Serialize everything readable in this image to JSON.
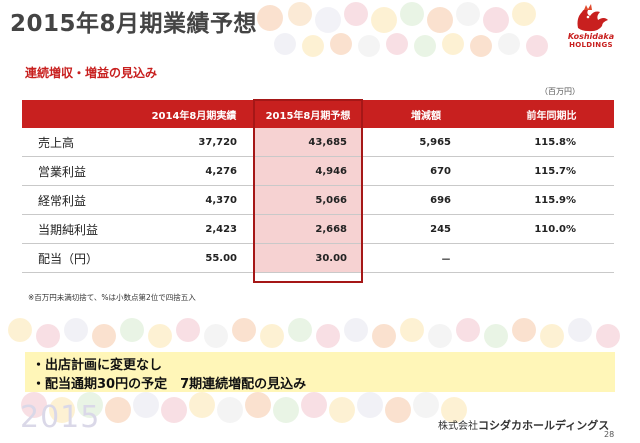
{
  "page": {
    "title": "2015年8月期業績予想",
    "subtitle": "連続増収・増益の見込み",
    "unit": "（百万円）",
    "note": "※百万円未満切捨て、%は小数点第2位で四捨五入",
    "watermark_year": "2015",
    "company_prefix": "株式会社",
    "company_name": "コシダカホールディングス",
    "page_number": "28"
  },
  "logo": {
    "brand": "Koshidaka",
    "sub": "HOLDINGS",
    "color": "#c8201f"
  },
  "table": {
    "headers": [
      "",
      "2014年8月期実績",
      "2015年8月期予想",
      "増減額",
      "前年同期比"
    ],
    "rows": [
      {
        "label": "売上高",
        "actual": "37,720",
        "forecast": "43,685",
        "change": "5,965",
        "yoy": "115.8%"
      },
      {
        "label": "営業利益",
        "actual": "4,276",
        "forecast": "4,946",
        "change": "670",
        "yoy": "115.7%"
      },
      {
        "label": "経常利益",
        "actual": "4,370",
        "forecast": "5,066",
        "change": "696",
        "yoy": "115.9%"
      },
      {
        "label": "当期純利益",
        "actual": "2,423",
        "forecast": "2,668",
        "change": "245",
        "yoy": "110.0%"
      },
      {
        "label": "配当（円）",
        "actual": "55.00",
        "forecast": "30.00",
        "change": "－",
        "yoy": ""
      }
    ]
  },
  "bullets": [
    "・出店計画に変更なし",
    "・配当通期30円の予定　7期連続増配の見込み"
  ],
  "colors": {
    "accent": "#c8201f",
    "highlight_cell": "#f6d2d2",
    "bullet_bg": "#fff6b8"
  }
}
